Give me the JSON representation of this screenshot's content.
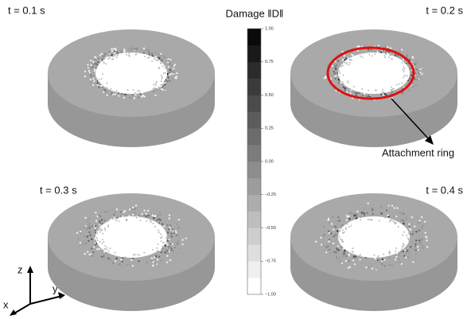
{
  "panels": [
    {
      "label": "t = 0.1 s"
    },
    {
      "label": "t = 0.2 s"
    },
    {
      "label": "t = 0.3 s"
    },
    {
      "label": "t = 0.4 s"
    }
  ],
  "colorbar": {
    "title": "Damage ‖D‖",
    "lim": [
      -1,
      1
    ],
    "levels": 16,
    "ticks": [
      {
        "value": 1,
        "label": "1.00"
      },
      0.75,
      {
        "value": 0.5,
        "label": "0.50"
      },
      0.25,
      {
        "value": 0,
        "label": "0.00"
      },
      {
        "value": -0.25,
        "label": "−0.25"
      },
      {
        "value": -0.5,
        "label": "−0.50"
      },
      {
        "value": -0.75,
        "label": "−0.75"
      },
      {
        "value": -1,
        "label": "−1.00"
      }
    ]
  },
  "annotation": "Attachment ring",
  "axes": {
    "z": "z",
    "y": "y",
    "x": "x"
  }
}
